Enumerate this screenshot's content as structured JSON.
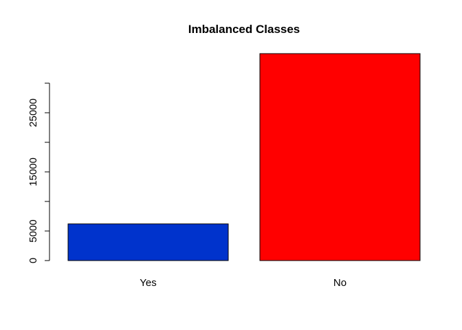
{
  "chart_data": {
    "type": "bar",
    "title": "Imbalanced Classes",
    "xlabel": "",
    "ylabel": "",
    "categories": [
      "Yes",
      "No"
    ],
    "values": [
      6200,
      35000
    ],
    "colors": [
      "#0033CC",
      "#FF0000"
    ],
    "ylim": [
      0,
      35000
    ],
    "y_ticks": [
      0,
      5000,
      10000,
      15000,
      20000,
      25000,
      30000
    ],
    "y_tick_labels": [
      "0",
      "5000",
      "",
      "15000",
      "",
      "25000",
      ""
    ],
    "grid": false,
    "legend": "none"
  }
}
